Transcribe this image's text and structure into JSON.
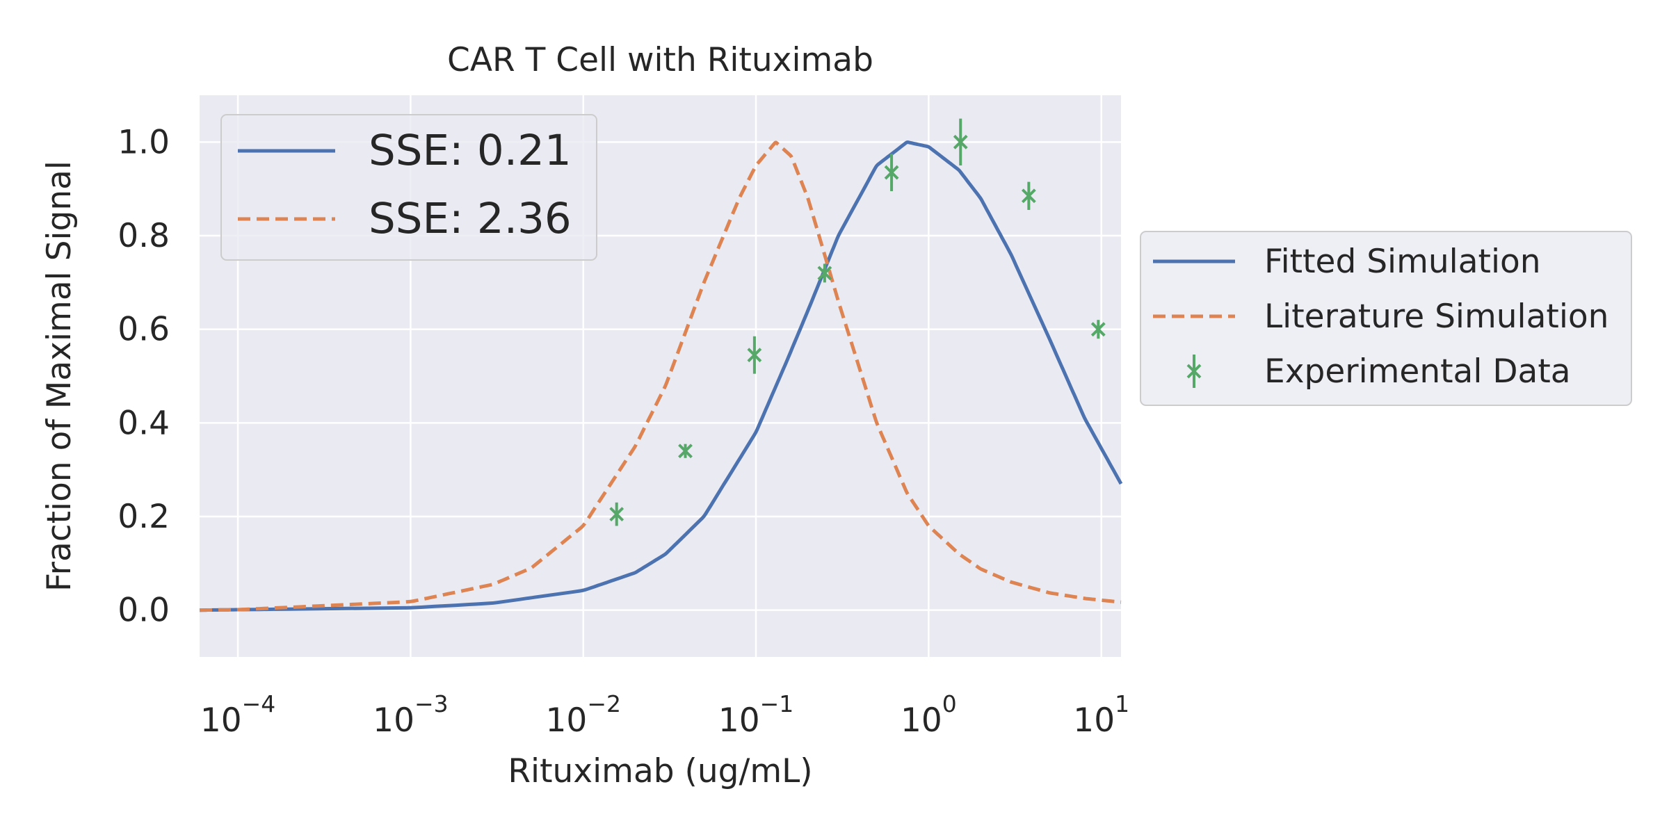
{
  "chart_data": {
    "type": "line",
    "title": "CAR T Cell with Rituximab",
    "xlabel": "Rituximab (ug/mL)",
    "ylabel": "Fraction of Maximal Signal",
    "x_scale": "log",
    "xlim": [
      6e-05,
      13
    ],
    "ylim": [
      -0.1,
      1.1
    ],
    "x_ticks": [
      {
        "value": 0.0001,
        "base": "10",
        "exp": "−4"
      },
      {
        "value": 0.001,
        "base": "10",
        "exp": "−3"
      },
      {
        "value": 0.01,
        "base": "10",
        "exp": "−2"
      },
      {
        "value": 0.1,
        "base": "10",
        "exp": "−1"
      },
      {
        "value": 1,
        "base": "10",
        "exp": "0"
      },
      {
        "value": 10,
        "base": "10",
        "exp": "1"
      }
    ],
    "y_ticks": [
      {
        "value": 0.0,
        "label": "0.0"
      },
      {
        "value": 0.2,
        "label": "0.2"
      },
      {
        "value": 0.4,
        "label": "0.4"
      },
      {
        "value": 0.6,
        "label": "0.6"
      },
      {
        "value": 0.8,
        "label": "0.8"
      },
      {
        "value": 1.0,
        "label": "1.0"
      }
    ],
    "grid": true,
    "series": [
      {
        "name": "Fitted Simulation",
        "kind": "line",
        "style": "solid",
        "color": "#4c72b0",
        "x": [
          6e-05,
          0.0001,
          0.001,
          0.003,
          0.01,
          0.02,
          0.03,
          0.05,
          0.1,
          0.15,
          0.2,
          0.3,
          0.5,
          0.75,
          1,
          1.5,
          2,
          3,
          5,
          8,
          13
        ],
        "y": [
          0.0,
          0.001,
          0.005,
          0.015,
          0.042,
          0.08,
          0.12,
          0.2,
          0.38,
          0.53,
          0.64,
          0.8,
          0.95,
          1.0,
          0.99,
          0.94,
          0.88,
          0.76,
          0.58,
          0.41,
          0.27
        ]
      },
      {
        "name": "Literature Simulation",
        "kind": "line",
        "style": "dashed",
        "color": "#dd8452",
        "x": [
          6e-05,
          0.0001,
          0.001,
          0.003,
          0.005,
          0.01,
          0.02,
          0.03,
          0.05,
          0.08,
          0.1,
          0.13,
          0.16,
          0.2,
          0.3,
          0.5,
          0.75,
          1,
          1.5,
          2,
          3,
          5,
          8,
          13
        ],
        "y": [
          0.0,
          0.001,
          0.018,
          0.055,
          0.09,
          0.18,
          0.35,
          0.48,
          0.7,
          0.88,
          0.95,
          1.0,
          0.97,
          0.88,
          0.66,
          0.4,
          0.25,
          0.18,
          0.12,
          0.088,
          0.06,
          0.037,
          0.025,
          0.017
        ]
      },
      {
        "name": "Experimental Data",
        "kind": "errorbar",
        "color": "#55a868",
        "x": [
          0.0156,
          0.039,
          0.098,
          0.25,
          0.61,
          1.53,
          3.8,
          9.6
        ],
        "y": [
          0.205,
          0.34,
          0.545,
          0.72,
          0.935,
          1.0,
          0.885,
          0.6
        ],
        "yerr": [
          0.025,
          0.015,
          0.04,
          0.02,
          0.04,
          0.05,
          0.03,
          0.02
        ]
      }
    ],
    "legends": [
      {
        "placement": "upper-left inside plot",
        "entries": [
          {
            "label": "SSE: 0.21",
            "style": "solid",
            "color": "#4c72b0"
          },
          {
            "label": "SSE: 2.36",
            "style": "dashed",
            "color": "#dd8452"
          }
        ]
      },
      {
        "placement": "right outside plot",
        "entries": [
          {
            "label": "Fitted Simulation",
            "style": "solid",
            "color": "#4c72b0"
          },
          {
            "label": "Literature Simulation",
            "style": "dashed",
            "color": "#dd8452"
          },
          {
            "label": "Experimental Data",
            "style": "errorbar",
            "color": "#55a868"
          }
        ]
      }
    ],
    "colors": {
      "plot_background": "#eaeaf2",
      "grid": "#ffffff",
      "text": "#262626"
    }
  }
}
